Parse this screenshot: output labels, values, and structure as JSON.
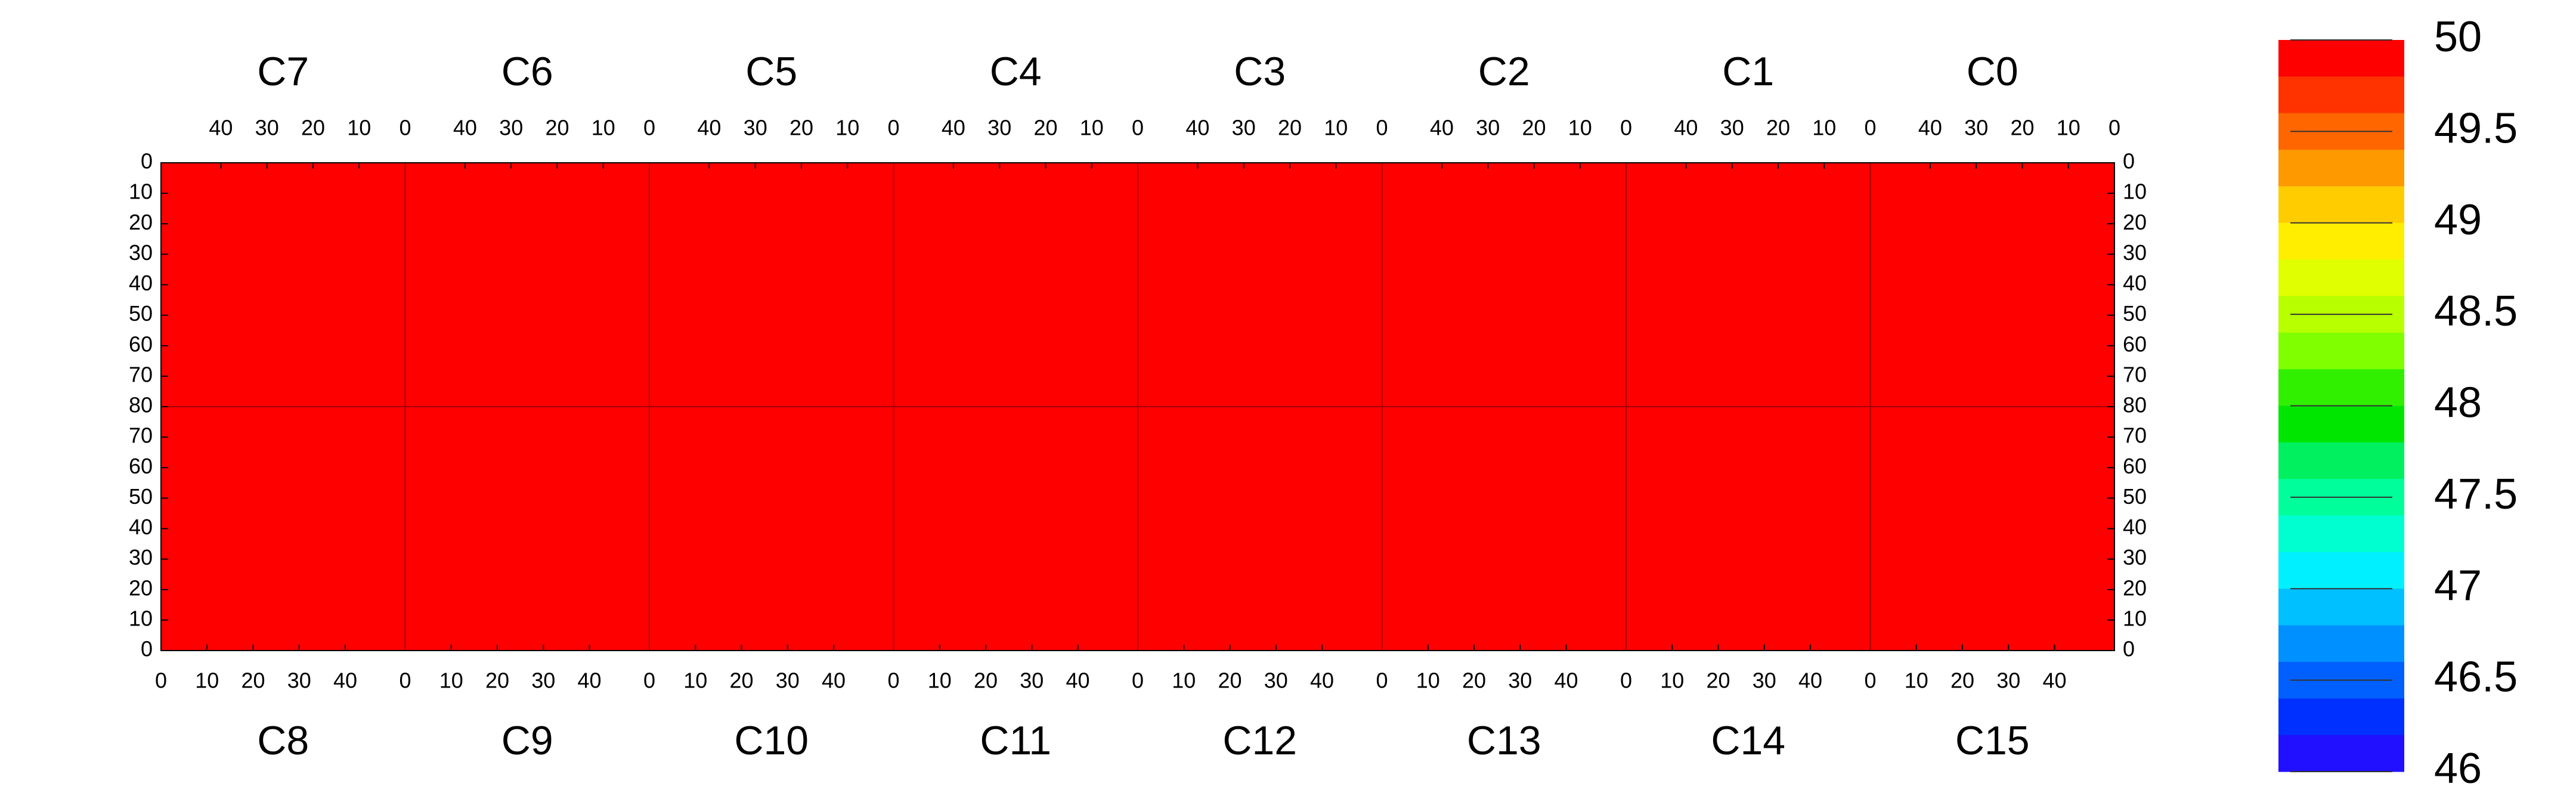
{
  "chart_data": {
    "type": "heatmap",
    "chips": [
      {
        "name": "C7",
        "value": 50
      },
      {
        "name": "C6",
        "value": 50
      },
      {
        "name": "C5",
        "value": 50
      },
      {
        "name": "C4",
        "value": 50
      },
      {
        "name": "C3",
        "value": 50
      },
      {
        "name": "C2",
        "value": 50
      },
      {
        "name": "C1",
        "value": 50
      },
      {
        "name": "C0",
        "value": 50
      },
      {
        "name": "C8",
        "value": 50
      },
      {
        "name": "C9",
        "value": 50
      },
      {
        "name": "C10",
        "value": 50
      },
      {
        "name": "C11",
        "value": 50
      },
      {
        "name": "C12",
        "value": 50
      },
      {
        "name": "C13",
        "value": 50
      },
      {
        "name": "C14",
        "value": 50
      },
      {
        "name": "C15",
        "value": 50
      }
    ],
    "xlim": [
      0,
      53
    ],
    "xticks": [
      0,
      10,
      20,
      30,
      40
    ],
    "ylim": [
      0,
      80
    ],
    "yticks": [
      0,
      10,
      20,
      30,
      40,
      50,
      60,
      70,
      80
    ],
    "zlim": [
      46,
      50
    ],
    "zticks": [
      50,
      49.5,
      49,
      48.5,
      48,
      47.5,
      47,
      46.5,
      46
    ],
    "colors": [
      "#ff0000",
      "#ff3300",
      "#ff6600",
      "#ff9900",
      "#ffcc00",
      "#ffee00",
      "#e0ff00",
      "#b8ff00",
      "#80ff00",
      "#30f000",
      "#00e600",
      "#00f060",
      "#00ff9a",
      "#00ffd0",
      "#00f0ff",
      "#00c0ff",
      "#0090ff",
      "#0060ff",
      "#0030ff",
      "#2010ff"
    ]
  }
}
